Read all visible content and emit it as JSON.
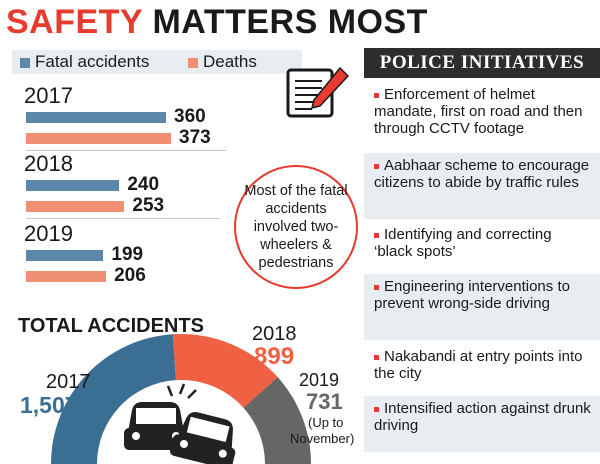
{
  "title": {
    "part1": "SAFETY",
    "part2": "MATTERS MOST"
  },
  "legend": {
    "fatal": "Fatal accidents",
    "deaths": "Deaths"
  },
  "note": "Most of the fatal accidents involved two-wheelers & pedestrians",
  "total_title": "TOTAL ACCIDENTS",
  "totals": [
    {
      "year": "2017",
      "value": "1,507"
    },
    {
      "year": "2018",
      "value": "899"
    },
    {
      "year": "2019",
      "value": "731",
      "note1": "(Up to",
      "note2": "November)"
    }
  ],
  "initiatives_title": "POLICE INITIATIVES",
  "initiatives": [
    "Enforcement of helmet mandate, first on road and then through CCTV footage",
    "Aabhaar scheme to encourage citizens to abide by traffic rules",
    "Identifying and correcting ‘black spots’",
    "Engineering interventions to prevent wrong-side driving",
    "Nakabandi at entry points into the city",
    "Intensified action against drunk driving"
  ],
  "colors": {
    "fatal": "#5b87aa",
    "deaths": "#ef8f73",
    "accent": "#e63b2e",
    "year2017": "#3b6e93",
    "year2018": "#f06042",
    "year2019": "#666666"
  },
  "chart_data": [
    {
      "type": "bar",
      "categories": [
        "2017",
        "2018",
        "2019"
      ],
      "series": [
        {
          "name": "Fatal accidents",
          "values": [
            360,
            240,
            199
          ]
        },
        {
          "name": "Deaths",
          "values": [
            373,
            253,
            206
          ]
        }
      ]
    },
    {
      "type": "pie",
      "title": "TOTAL ACCIDENTS",
      "categories": [
        "2017",
        "2018",
        "2019"
      ],
      "values": [
        1507,
        899,
        731
      ]
    }
  ]
}
